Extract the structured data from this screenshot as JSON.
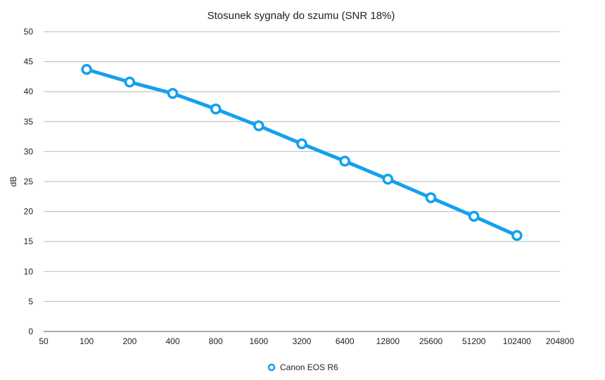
{
  "chart_data": {
    "type": "line",
    "title": "Stosunek sygnały do szumu (SNR 18%)",
    "xlabel": "",
    "ylabel": "dB",
    "x_scale": "log2",
    "xlim": [
      50,
      204800
    ],
    "ylim": [
      0,
      50
    ],
    "x_ticks": [
      "50",
      "100",
      "200",
      "400",
      "800",
      "1600",
      "3200",
      "6400",
      "12800",
      "25600",
      "51200",
      "102400",
      "204800"
    ],
    "x_tick_values": [
      50,
      100,
      200,
      400,
      800,
      1600,
      3200,
      6400,
      12800,
      25600,
      51200,
      102400,
      204800
    ],
    "y_ticks": [
      0,
      5,
      10,
      15,
      20,
      25,
      30,
      35,
      40,
      45,
      50
    ],
    "grid": true,
    "legend": "bottom-center",
    "series": [
      {
        "name": "Canon EOS R6",
        "color": "#14a0ee",
        "x": [
          100,
          200,
          400,
          800,
          1600,
          3200,
          6400,
          12800,
          25600,
          51200,
          102400
        ],
        "y": [
          43.7,
          41.6,
          39.7,
          37.1,
          34.3,
          31.3,
          28.4,
          25.4,
          22.3,
          19.2,
          16.0
        ]
      }
    ]
  }
}
